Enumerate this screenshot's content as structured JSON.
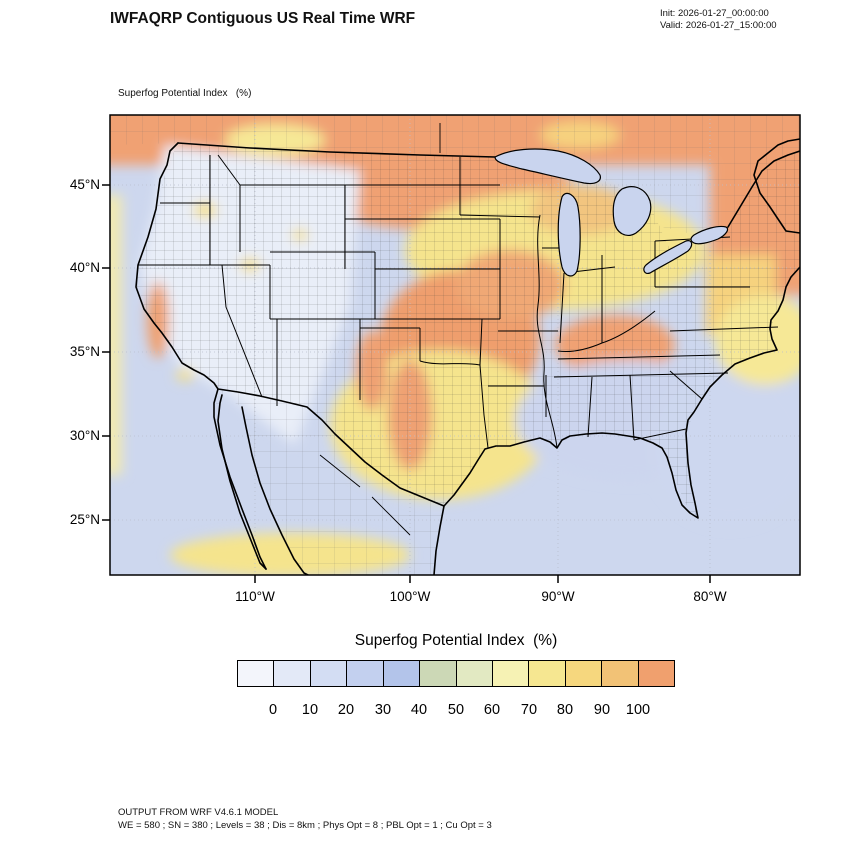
{
  "header": {
    "title": "IWFAQRP Contiguous US Real Time WRF",
    "init_label": "Init: 2026-01-27_00:00:00",
    "valid_label": "Valid: 2026-01-27_15:00:00"
  },
  "map": {
    "subtitle": "Superfog Potential Index   (%)",
    "y_ticks": [
      "45°N",
      "40°N",
      "35°N",
      "30°N",
      "25°N"
    ],
    "x_ticks": [
      "110°W",
      "100°W",
      "90°W",
      "80°W"
    ]
  },
  "colorbar": {
    "title": "Superfog Potential Index  (%)",
    "tick_labels": [
      "0",
      "10",
      "20",
      "30",
      "40",
      "50",
      "60",
      "70",
      "80",
      "90",
      "100"
    ],
    "cell_colors": [
      "#f3f5fb",
      "#e3e9f7",
      "#d3ddf3",
      "#c3d0ef",
      "#b3c4ea",
      "#ccd8b6",
      "#e2e9c2",
      "#f6f2b4",
      "#f6e791",
      "#f6d77e",
      "#f2c276",
      "#f0a06e"
    ]
  },
  "footer": {
    "line1": "OUTPUT FROM WRF V4.6.1 MODEL",
    "line2": "WE = 580 ; SN = 380 ; Levels = 38 ; Dis = 8km ; Phys Opt = 8 ; PBL Opt = 1 ; Cu Opt = 3"
  },
  "chart_data": {
    "type": "heatmap",
    "title": "Superfog Potential Index (%)",
    "colorbar_ticks": [
      0,
      10,
      20,
      30,
      40,
      50,
      60,
      70,
      80,
      90,
      100
    ],
    "x_axis": {
      "ticks": [
        "110°W",
        "100°W",
        "90°W",
        "80°W"
      ]
    },
    "y_axis": {
      "ticks": [
        "45°N",
        "40°N",
        "35°N",
        "30°N",
        "25°N"
      ]
    },
    "legend_position": "bottom",
    "grid": true
  }
}
